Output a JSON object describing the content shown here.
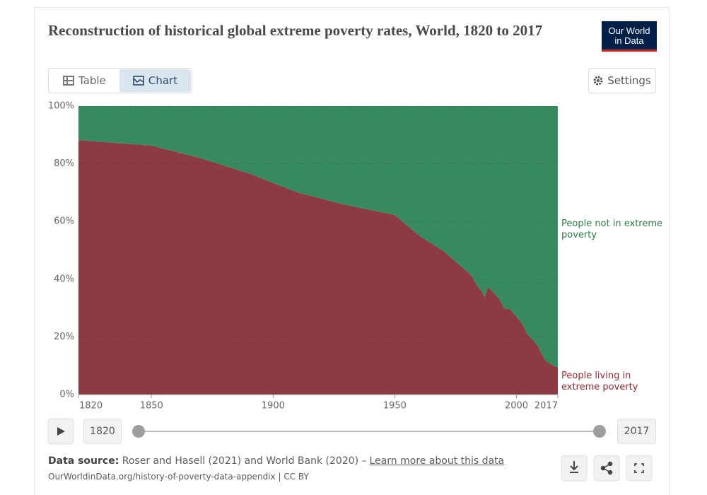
{
  "ui": {
    "title": "Reconstruction of historical global extreme poverty rates, World, 1820 to 2017",
    "logo": [
      "Our World",
      "in Data"
    ],
    "tabs": [
      "Table",
      "Chart"
    ],
    "settings": "Settings",
    "timeline": {
      "start": "1820",
      "end": "2017"
    },
    "source": {
      "label": "Data source:",
      "text": "Roser and Hasell (2021) and World Bank (2020) –",
      "link": "Learn more about this data"
    },
    "url": "OurWorldinData.org/history-of-poverty-data-appendix | CC BY"
  },
  "chart_data": {
    "type": "area",
    "stacked": true,
    "grid": true,
    "x": [
      1820,
      1850,
      1870,
      1890,
      1910,
      1929,
      1950,
      1960,
      1970,
      1981,
      1982,
      1983,
      1984,
      1985,
      1986,
      1987,
      1988,
      1989,
      1990,
      1991,
      1992,
      1993,
      1994,
      1995,
      1996,
      1997,
      1998,
      1999,
      2000,
      2001,
      2002,
      2003,
      2004,
      2005,
      2006,
      2007,
      2008,
      2009,
      2010,
      2011,
      2012,
      2013,
      2014,
      2015,
      2016,
      2017
    ],
    "series": [
      {
        "name": "People living in extreme poverty",
        "color": "#8d3a42",
        "values": [
          88.2,
          86.3,
          82,
          76.7,
          70.1,
          65.9,
          62.3,
          55.1,
          49.8,
          41.7,
          40.5,
          39,
          37.5,
          36.5,
          35.5,
          33.7,
          36.9,
          36.8,
          36,
          35,
          34,
          33,
          31.5,
          29.8,
          29.6,
          29.9,
          29,
          28,
          27,
          26,
          25,
          23.5,
          21.5,
          20.5,
          19.5,
          18.8,
          17.6,
          16.7,
          14.8,
          13.2,
          11.7,
          11.2,
          10.6,
          10.1,
          9.8,
          9.5
        ]
      },
      {
        "name": "People not in extreme poverty",
        "color": "#388a5e",
        "values": [
          11.8,
          13.7,
          18,
          23.3,
          29.9,
          34.1,
          37.7,
          44.9,
          50.2,
          58.3,
          59.5,
          61,
          62.5,
          63.5,
          64.5,
          66.3,
          63.1,
          63.2,
          64,
          65,
          66,
          67,
          68.5,
          70.2,
          70.4,
          70.1,
          71,
          72,
          73,
          74,
          75,
          76.5,
          78.5,
          79.5,
          80.5,
          81.2,
          82.4,
          83.3,
          85.2,
          86.8,
          88.3,
          88.8,
          89.4,
          89.9,
          90.2,
          90.5
        ]
      }
    ],
    "xlim": [
      1820,
      2017
    ],
    "xticks": [
      1820,
      1850,
      1900,
      1950,
      2000,
      2017
    ],
    "ylim": [
      0,
      100
    ],
    "yticks": [
      {
        "value": 0,
        "label": "0%"
      },
      {
        "value": 20,
        "label": "20%"
      },
      {
        "value": 40,
        "label": "40%"
      },
      {
        "value": 60,
        "label": "60%"
      },
      {
        "value": 80,
        "label": "80%"
      },
      {
        "value": 100,
        "label": "100%"
      }
    ]
  }
}
